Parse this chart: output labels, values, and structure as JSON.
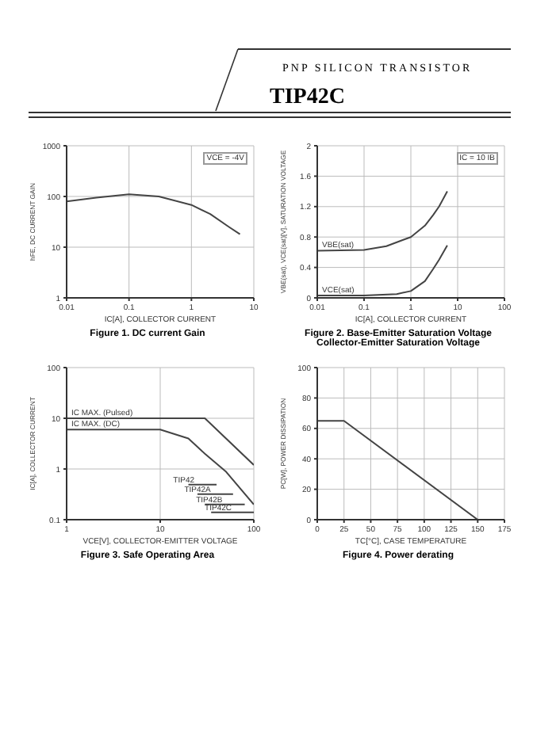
{
  "chart_data": [
    {
      "type": "other",
      "title": "TIP42C",
      "subtitle": "PNP SILICON TRANSISTOR"
    },
    {
      "type": "line",
      "title": "Figure 1. DC current Gain",
      "xlabel": "IC[A], COLLECTOR CURRENT",
      "ylabel": "hFE, DC CURRENT GAIN",
      "annotations": [
        "VCE = -4V"
      ],
      "log": "xy",
      "grid": true,
      "marker": "none",
      "legend": false,
      "xlim": [
        0.01,
        10
      ],
      "xticks": [
        0.01,
        0.1,
        1,
        10
      ],
      "ylim": [
        1,
        1000
      ],
      "yticks": [
        1,
        10,
        100,
        1000
      ],
      "series": [
        {
          "color": "#444444",
          "x": [
            0.01,
            0.03,
            0.1,
            0.3,
            1,
            2,
            4,
            6
          ],
          "values": [
            80,
            95,
            110,
            100,
            68,
            45,
            25,
            18
          ]
        }
      ]
    },
    {
      "type": "line",
      "title": "Figure 2. Base-Emitter Saturation Voltage",
      "subtitle": "Collector-Emitter Saturation Voltage",
      "xlabel": "IC[A], COLLECTOR CURRENT",
      "ylabel": "VBE(sat), VCE(sat)[V], SATURATION VOLTAGE",
      "annotations": [
        "IC = 10 IB"
      ],
      "log": "x",
      "grid": true,
      "marker": "none",
      "legend": false,
      "xlim": [
        0.01,
        100
      ],
      "xticks": [
        0.01,
        0.1,
        1,
        10,
        100
      ],
      "ylim": [
        0,
        2
      ],
      "yticks": [
        0,
        0.4,
        0.8,
        1.2,
        1.6,
        2
      ],
      "series": [
        {
          "name": "VBE(sat)",
          "color": "#444444",
          "x": [
            0.01,
            0.1,
            0.3,
            1,
            2,
            3,
            4,
            6
          ],
          "values": [
            0.62,
            0.63,
            0.68,
            0.8,
            0.95,
            1.09,
            1.2,
            1.4
          ]
        },
        {
          "name": "VCE(sat)",
          "color": "#444444",
          "x": [
            0.01,
            0.1,
            0.5,
            1,
            2,
            3,
            4,
            6
          ],
          "values": [
            0.03,
            0.03,
            0.05,
            0.09,
            0.22,
            0.38,
            0.5,
            0.69
          ]
        }
      ]
    },
    {
      "type": "line",
      "title": "Figure 3. Safe Operating Area",
      "xlabel": "VCE[V], COLLECTOR-EMITTER VOLTAGE",
      "ylabel": "IC[A], COLLECTOR CURRENT",
      "log": "xy",
      "grid": true,
      "marker": "none",
      "legend": false,
      "xlim": [
        1,
        100
      ],
      "xticks": [
        1,
        10,
        100
      ],
      "ylim": [
        0.1,
        100
      ],
      "yticks": [
        0.1,
        1,
        10,
        100
      ],
      "annotations": [
        {
          "text": "TIP42",
          "x": 40,
          "y": 0.49
        },
        {
          "text": "TIP42A",
          "x": 60,
          "y": 0.32
        },
        {
          "text": "TIP42B",
          "x": 80,
          "y": 0.2
        },
        {
          "text": "TIP42C",
          "x": 100,
          "y": 0.14
        }
      ],
      "series": [
        {
          "name": "IC MAX. (Pulsed)",
          "color": "#444444",
          "x": [
            1,
            30,
            100
          ],
          "values": [
            10,
            10,
            1.2
          ]
        },
        {
          "name": "IC MAX. (DC)",
          "color": "#444444",
          "x": [
            1,
            10,
            20,
            30,
            50,
            100
          ],
          "values": [
            6,
            6,
            4,
            2,
            0.9,
            0.2
          ]
        },
        {
          "color": "#444444",
          "x": [
            20,
            40
          ],
          "values": [
            0.49,
            0.49
          ]
        },
        {
          "color": "#444444",
          "x": [
            25,
            60
          ],
          "values": [
            0.32,
            0.32
          ]
        },
        {
          "color": "#444444",
          "x": [
            30,
            80
          ],
          "values": [
            0.2,
            0.2
          ]
        },
        {
          "color": "#444444",
          "x": [
            35,
            100
          ],
          "values": [
            0.14,
            0.14
          ]
        }
      ]
    },
    {
      "type": "line",
      "title": "Figure 4. Power derating",
      "xlabel": "TC[°C], CASE TEMPERATURE",
      "ylabel": "PC[W], POWER DISSIPATION",
      "grid": true,
      "marker": "none",
      "legend": false,
      "xlim": [
        0,
        175
      ],
      "xticks": [
        0,
        25,
        50,
        75,
        100,
        125,
        150,
        175
      ],
      "ylim": [
        0,
        100
      ],
      "yticks": [
        0,
        20,
        40,
        60,
        80,
        100
      ],
      "series": [
        {
          "color": "#444444",
          "x": [
            0,
            25,
            150
          ],
          "values": [
            65,
            65,
            0
          ]
        }
      ]
    }
  ]
}
